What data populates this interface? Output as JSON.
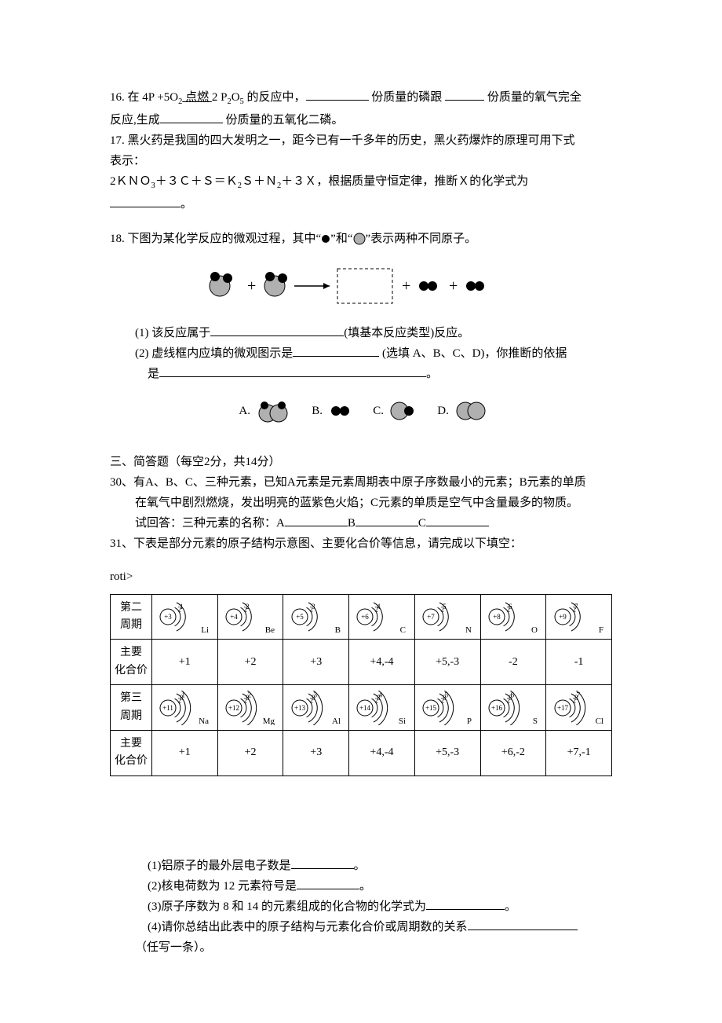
{
  "q16": {
    "text_a": "16. 在 4P +5O",
    "sub_a": "2",
    "ignite": " 点燃 ",
    "text_b": "2 P",
    "sub_b": "2",
    "text_c": "O",
    "sub_c": "5",
    "text_d": " 的反应中，",
    "text_e": " 份质量的磷跟 ",
    "text_f": " 份质量的氧气完全",
    "line2_a": "反应,生成",
    "line2_b": " 份质量的五氧化二磷。"
  },
  "q17": {
    "line1": "17. 黑火药是我国的四大发明之一，距今已有一千多年的历史，黑火药爆炸的原理可用下式",
    "line2": "表示：",
    "eq_a": "2ＫＮＯ",
    "eq_sub1": "3",
    "eq_b": "＋３Ｃ＋Ｓ＝Ｋ",
    "eq_sub2": "2",
    "eq_c": "Ｓ＋Ｎ",
    "eq_sub3": "2",
    "eq_d": "＋３Ｘ，根据质量守恒定律，推断Ｘ的化学式为",
    "line4": "。"
  },
  "q18": {
    "intro_a": "18. 下图为某化学反应的微观过程，其中“",
    "intro_b": "”和“",
    "intro_c": "”表示两种不同原子。",
    "sub1_a": "(1)  该反应属于",
    "sub1_b": "(填基本反应类型)反应。",
    "sub2_a": "(2)  虚线框内应填的微观图示是",
    "sub2_b": " (选填 A、B、C、D)，你推断的依据",
    "sub2_c": "是",
    "sub2_d": "。",
    "optA": "A.",
    "optB": "B.",
    "optC": "C.",
    "optD": "D.",
    "colors": {
      "small_atom": "#000000",
      "large_atom_fill": "#b0b0b0",
      "large_atom_stroke": "#000000",
      "arrow": "#000000",
      "plus": "#000000",
      "dashed_box": "#000000"
    }
  },
  "section3": {
    "header": "三、简答题（每空2分，共14分）"
  },
  "q30": {
    "line1": "30、有A、B、C、三种元素，已知A元素是元素周期表中原子序数最小的元素；B元素的单质",
    "line2": "在氧气中剧烈燃烧，发出明亮的蓝紫色火焰；C元素的单质是空气中含量最多的物质。",
    "line3_a": "试回答：三种元素的名称：A",
    "line3_b": "B",
    "line3_c": "C"
  },
  "q31": {
    "intro": "31、下表是部分元素的原子结构示意图、主要化合价等信息，请完成以下填空：",
    "table": {
      "row_labels": [
        "第二\n周期",
        "主要\n化合价",
        "第三\n周期",
        "主要\n化合价"
      ],
      "period2": [
        {
          "z": "+3",
          "shells": [
            "2",
            "1"
          ],
          "sym": "Li"
        },
        {
          "z": "+4",
          "shells": [
            "2",
            "2"
          ],
          "sym": "Be"
        },
        {
          "z": "+5",
          "shells": [
            "2",
            "3"
          ],
          "sym": "B"
        },
        {
          "z": "+6",
          "shells": [
            "2",
            "4"
          ],
          "sym": "C"
        },
        {
          "z": "+7",
          "shells": [
            "2",
            "5"
          ],
          "sym": "N"
        },
        {
          "z": "+8",
          "shells": [
            "2",
            "6"
          ],
          "sym": "O"
        },
        {
          "z": "+9",
          "shells": [
            "2",
            "7"
          ],
          "sym": "F"
        }
      ],
      "valence2": [
        "+1",
        "+2",
        "+3",
        "+4,-4",
        "+5,-3",
        "-2",
        "-1"
      ],
      "period3": [
        {
          "z": "+11",
          "shells": [
            "2",
            "8",
            "1"
          ],
          "sym": "Na"
        },
        {
          "z": "+12",
          "shells": [
            "2",
            "8",
            "2"
          ],
          "sym": "Mg"
        },
        {
          "z": "+13",
          "shells": [
            "2",
            "8",
            "3"
          ],
          "sym": "Al"
        },
        {
          "z": "+14",
          "shells": [
            "2",
            "8",
            "4"
          ],
          "sym": "Si"
        },
        {
          "z": "+15",
          "shells": [
            "2",
            "8",
            "5"
          ],
          "sym": "P"
        },
        {
          "z": "+16",
          "shells": [
            "2",
            "8",
            "6"
          ],
          "sym": "S"
        },
        {
          "z": "+17",
          "shells": [
            "2",
            "8",
            "7"
          ],
          "sym": "Cl"
        }
      ],
      "valence3": [
        "+1",
        "+2",
        "+3",
        "+4,-4",
        "+5,-3",
        "+6,-2",
        "+7,-1"
      ]
    },
    "sub1_a": "(1)铝原子的最外层电子数是",
    "sub1_b": "。",
    "sub2_a": "(2)核电荷数为 12 元素符号是",
    "sub2_b": "。",
    "sub3_a": " (3)原子序数为 8 和 14 的元素组成的化合物的化学式为",
    "sub3_b": "。",
    "sub4": " (4)请你总结出此表中的原子结构与元素化合价或周期数的关系",
    "sub4_b": "（任写一条）。"
  }
}
